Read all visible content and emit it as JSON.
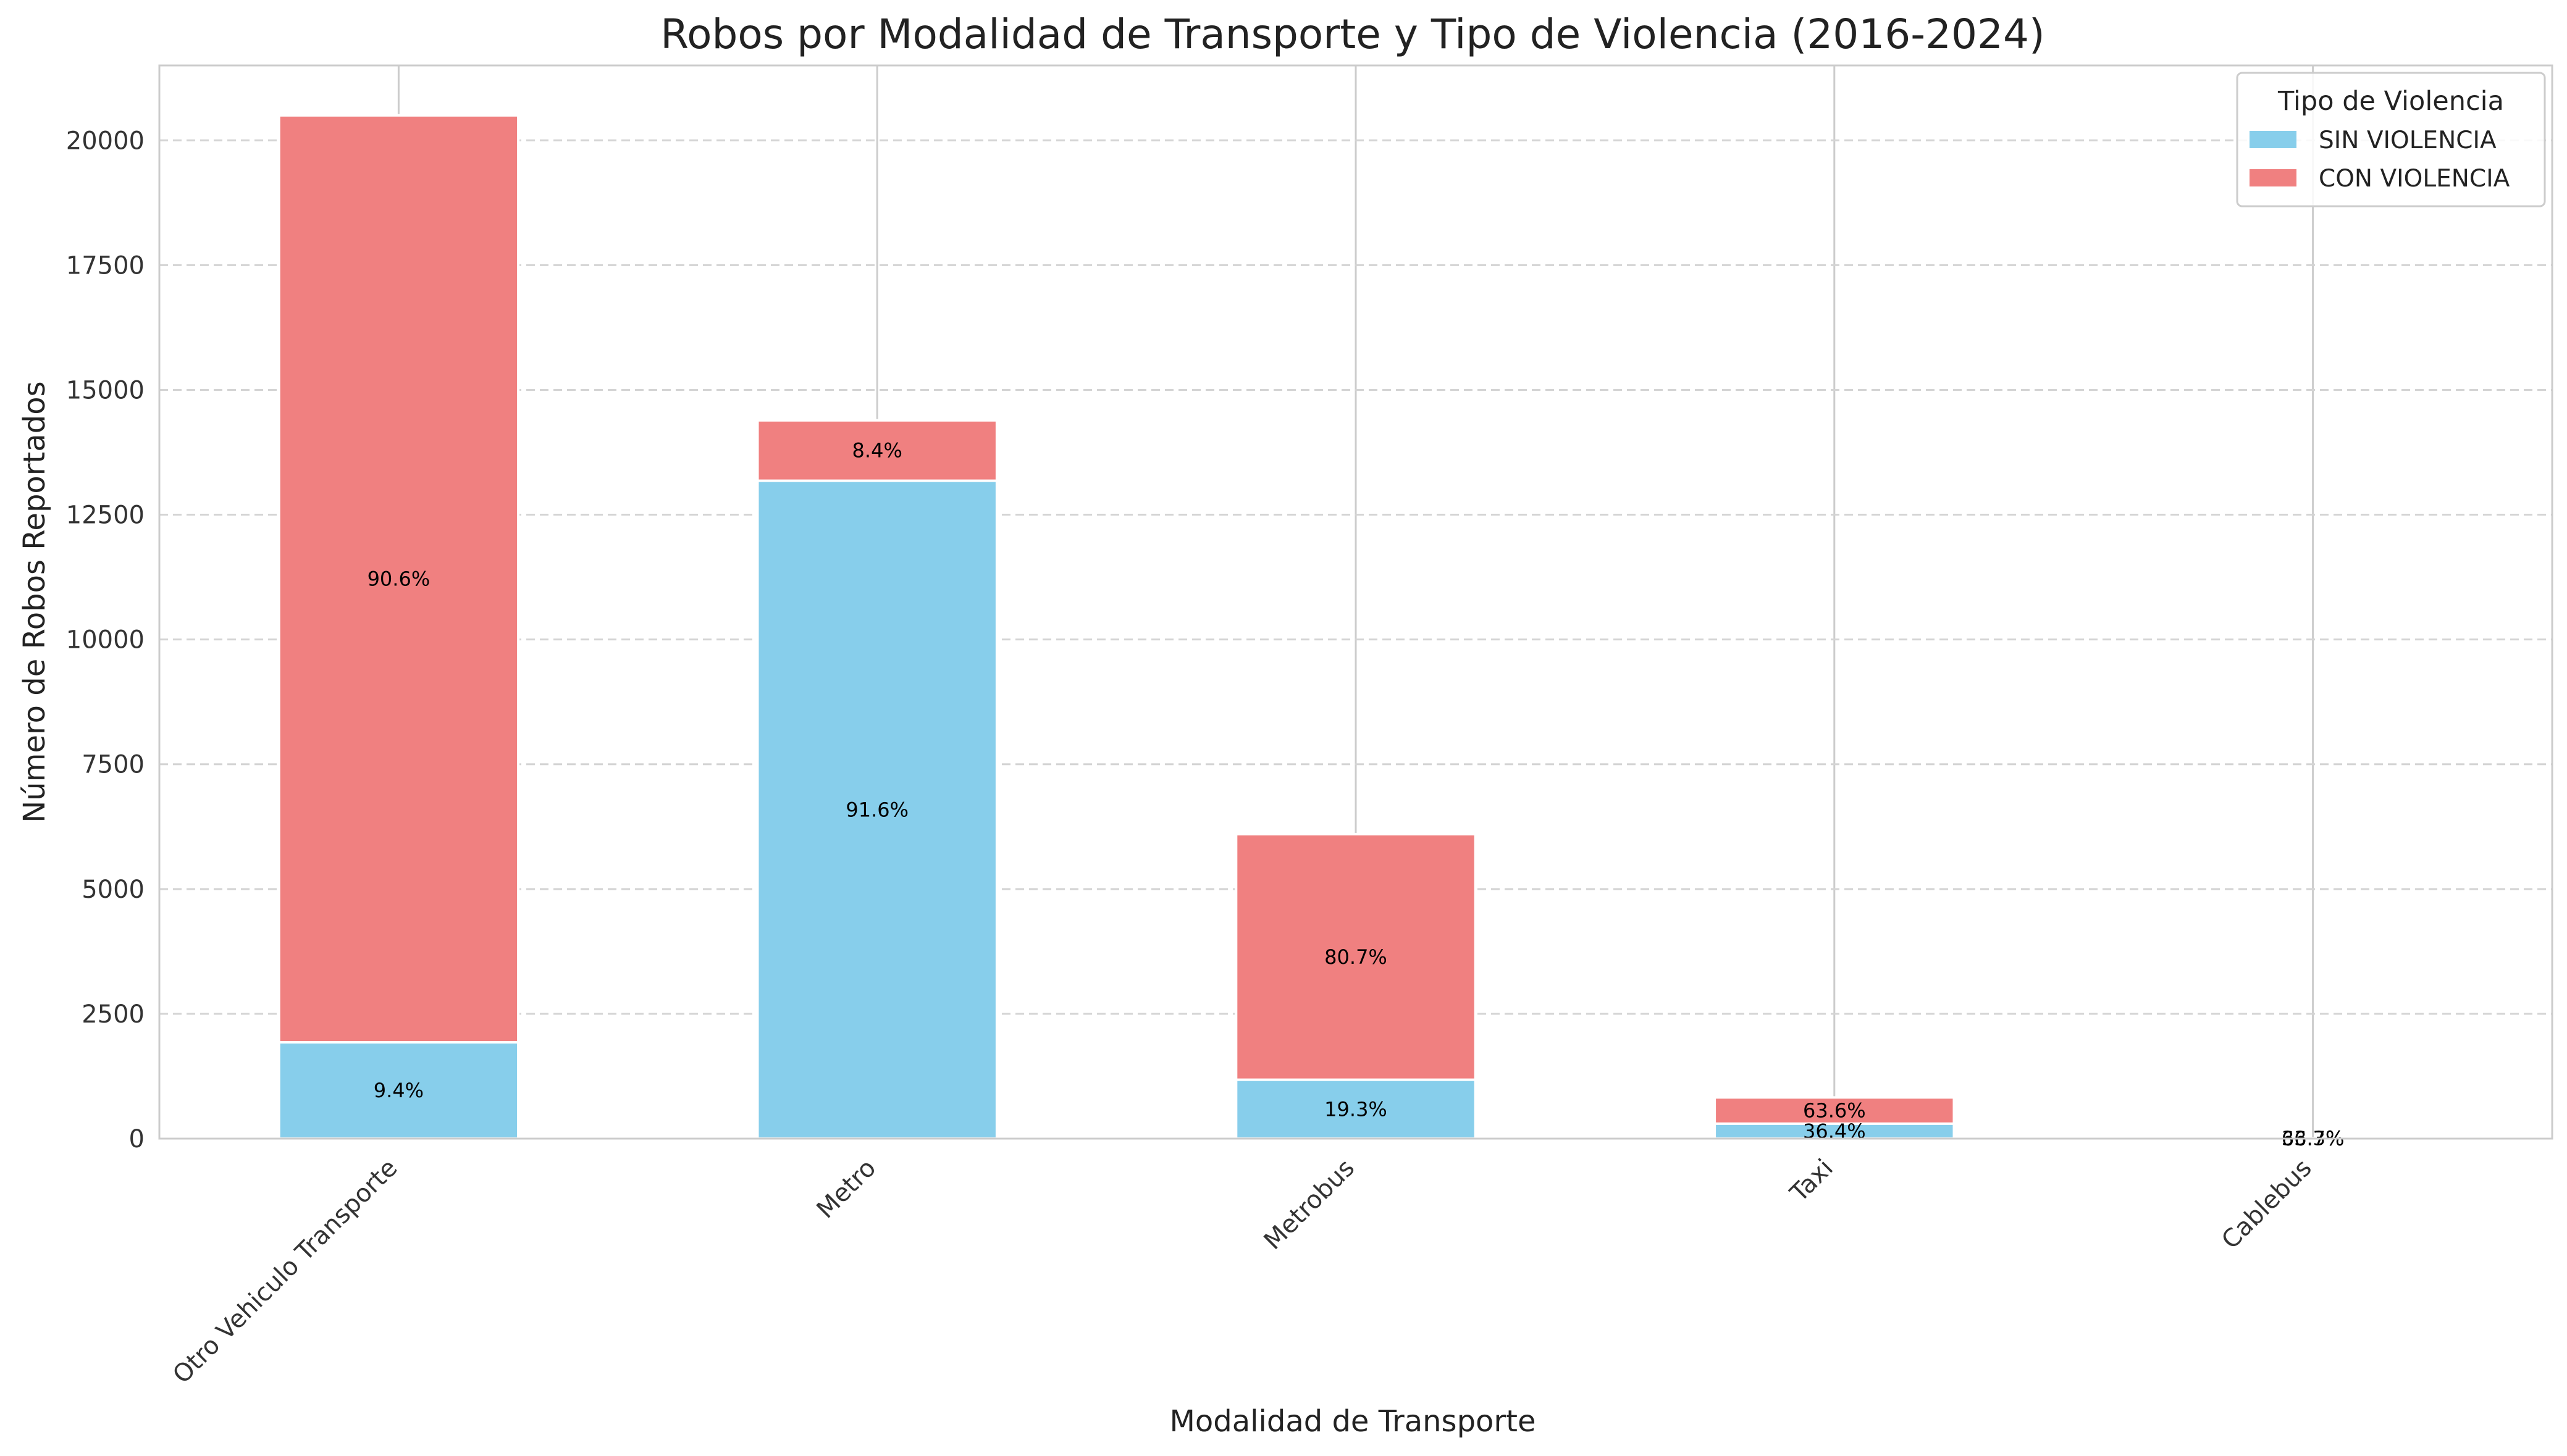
{
  "chart_data": {
    "type": "bar",
    "stacked": true,
    "title": "Robos por Modalidad de Transporte y Tipo de Violencia (2016-2024)",
    "xlabel": "Modalidad de Transporte",
    "ylabel": "Número de Robos Reportados",
    "ylim": [
      0,
      21500
    ],
    "yticks": [
      0,
      2500,
      5000,
      7500,
      10000,
      12500,
      15000,
      17500,
      20000
    ],
    "grid": "y dashed",
    "categories": [
      "Otro Vehiculo Transporte",
      "Metro",
      "Metrobus",
      "Taxi",
      "Cablebus"
    ],
    "series": [
      {
        "name": "SIN VIOLENCIA",
        "color": "#87CEEB",
        "values": [
          1930,
          13180,
          1180,
          300,
          4
        ],
        "labels": [
          "9.4%",
          "91.6%",
          "19.3%",
          "36.4%",
          "66.7%"
        ]
      },
      {
        "name": "CON VIOLENCIA",
        "color": "#F08080",
        "values": [
          18570,
          1210,
          4920,
          525,
          2
        ],
        "labels": [
          "90.6%",
          "8.4%",
          "80.7%",
          "63.6%",
          "33.3%"
        ]
      }
    ],
    "legend": {
      "title": "Tipo de Violencia",
      "placement": "top-right"
    }
  }
}
